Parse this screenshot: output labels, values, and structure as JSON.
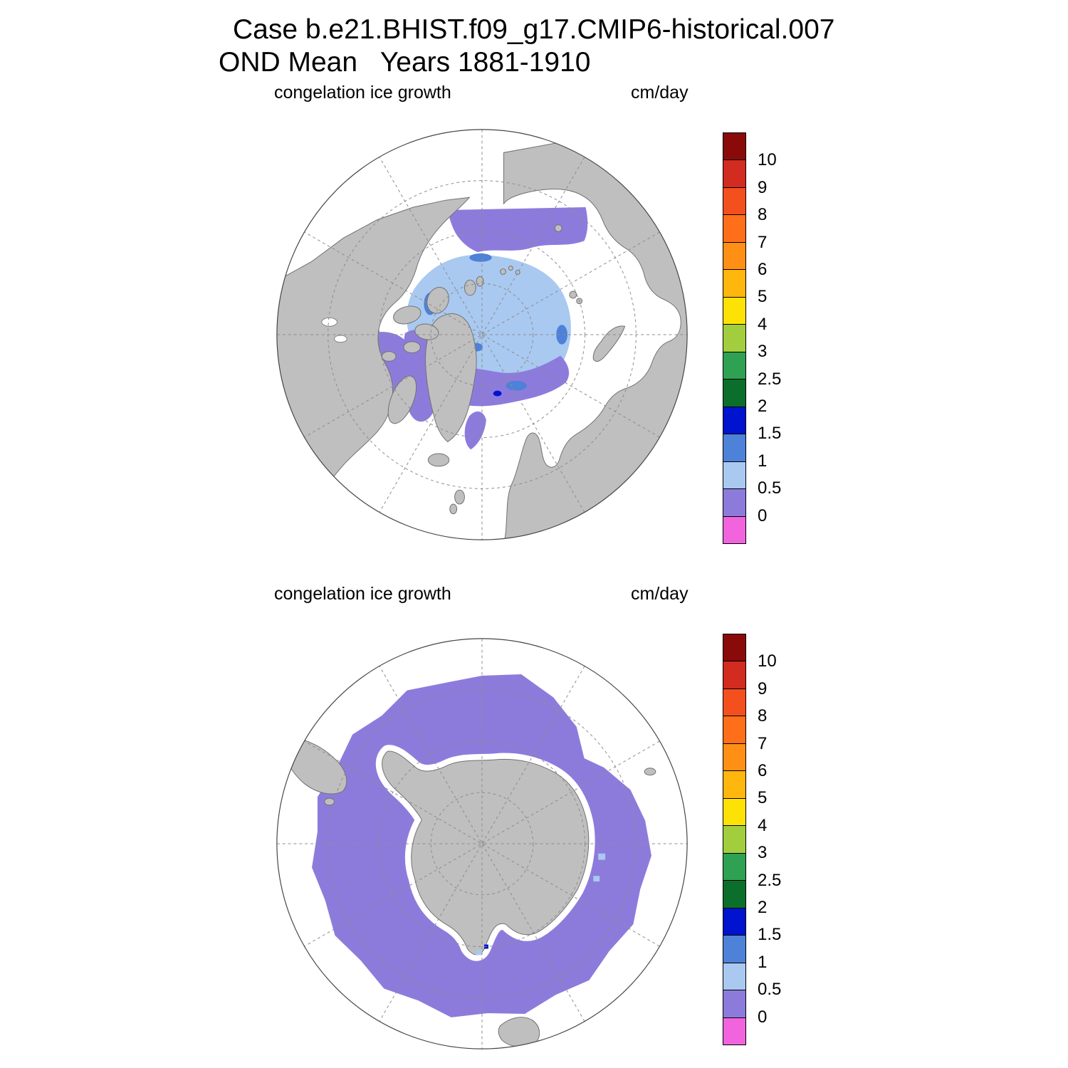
{
  "title": {
    "line1": "Case b.e21.BHIST.f09_g17.CMIP6-historical.007",
    "line2": "OND Mean   Years 1881-1910"
  },
  "panels": [
    {
      "hemisphere": "Northern Hemisphere (Arctic) polar stereographic map",
      "variable_label": "congelation ice growth",
      "units_label": "cm/day"
    },
    {
      "hemisphere": "Southern Hemisphere (Antarctic) polar stereographic map",
      "variable_label": "congelation ice growth",
      "units_label": "cm/day"
    }
  ],
  "colorbar": {
    "tick_labels": [
      "10",
      "9",
      "8",
      "7",
      "6",
      "5",
      "4",
      "3",
      "2.5",
      "2",
      "1.5",
      "1",
      "0.5",
      "0"
    ],
    "segment_colors_top_to_bottom": [
      "#8A0A0A",
      "#D22B20",
      "#F4501E",
      "#FF6F1A",
      "#FF9015",
      "#FFB60D",
      "#FFE205",
      "#A2CE3E",
      "#2FA152",
      "#0B6E2B",
      "#0013CE",
      "#4E81D8",
      "#A9C9F0",
      "#8D7BDC",
      "#F263DE"
    ]
  },
  "map_colors": {
    "land": "#BFBFBF",
    "ocean": "#FFFFFF",
    "graticule": "#8C8C8C",
    "ice_light_blue": "#A9C9F0",
    "ice_medium_blue": "#4E81D8",
    "ice_dark_blue": "#0013CE",
    "ice_purple": "#8D7BDC"
  },
  "chart_data": [
    {
      "type": "heatmap",
      "title": "congelation ice growth — Northern Hemisphere",
      "units": "cm/day",
      "projection": "north polar stereographic, graticule dashed every 30 deg longitude",
      "levels": [
        0,
        0.5,
        1,
        1.5,
        2,
        2.5,
        3,
        4,
        5,
        6,
        7,
        8,
        9,
        10
      ],
      "palette_top_to_bottom": [
        "#8A0A0A",
        "#D22B20",
        "#F4501E",
        "#FF6F1A",
        "#FF9015",
        "#FFB60D",
        "#FFE205",
        "#A2CE3E",
        "#2FA152",
        "#0B6E2B",
        "#0013CE",
        "#4E81D8",
        "#A9C9F0",
        "#8D7BDC",
        "#F263DE"
      ],
      "regions": [
        {
          "region": "central Arctic Ocean",
          "value_range_cm_per_day": "0.5 to 1"
        },
        {
          "region": "scattered ice-edge patches (north of Greenland, Laptev/Kara edge)",
          "value_range_cm_per_day": "1 to 1.5"
        },
        {
          "region": "Chukchi Sea / Bering Strait area",
          "value_range_cm_per_day": "0 to 0.5"
        },
        {
          "region": "Hudson Bay",
          "value_range_cm_per_day": "0 to 0.5"
        },
        {
          "region": "Baffin Bay and Canadian Archipelago channels",
          "value_range_cm_per_day": "0 to 0.5"
        },
        {
          "region": "East Greenland / Barents Sea margin",
          "value_range_cm_per_day": "0 to 0.5"
        },
        {
          "region": "remaining open ocean",
          "value_range_cm_per_day": "no ice growth (white)"
        }
      ]
    },
    {
      "type": "heatmap",
      "title": "congelation ice growth — Southern Hemisphere",
      "units": "cm/day",
      "projection": "south polar stereographic, graticule dashed every 30 deg longitude",
      "levels": [
        0,
        0.5,
        1,
        1.5,
        2,
        2.5,
        3,
        4,
        5,
        6,
        7,
        8,
        9,
        10
      ],
      "palette_top_to_bottom": [
        "#8A0A0A",
        "#D22B20",
        "#F4501E",
        "#FF6F1A",
        "#FF9015",
        "#FFB60D",
        "#FFE205",
        "#A2CE3E",
        "#2FA152",
        "#0B6E2B",
        "#0013CE",
        "#4E81D8",
        "#A9C9F0",
        "#8D7BDC",
        "#F263DE"
      ],
      "regions": [
        {
          "region": "circumpolar Southern Ocean ring around Antarctica (jagged outer edge)",
          "value_range_cm_per_day": "0 to 0.5"
        },
        {
          "region": "small coastal specks near Ross/Amundsen coast",
          "value_range_cm_per_day": "0.5 to 2"
        },
        {
          "region": "open ocean beyond ice edge",
          "value_range_cm_per_day": "no ice growth (white)"
        }
      ]
    }
  ]
}
